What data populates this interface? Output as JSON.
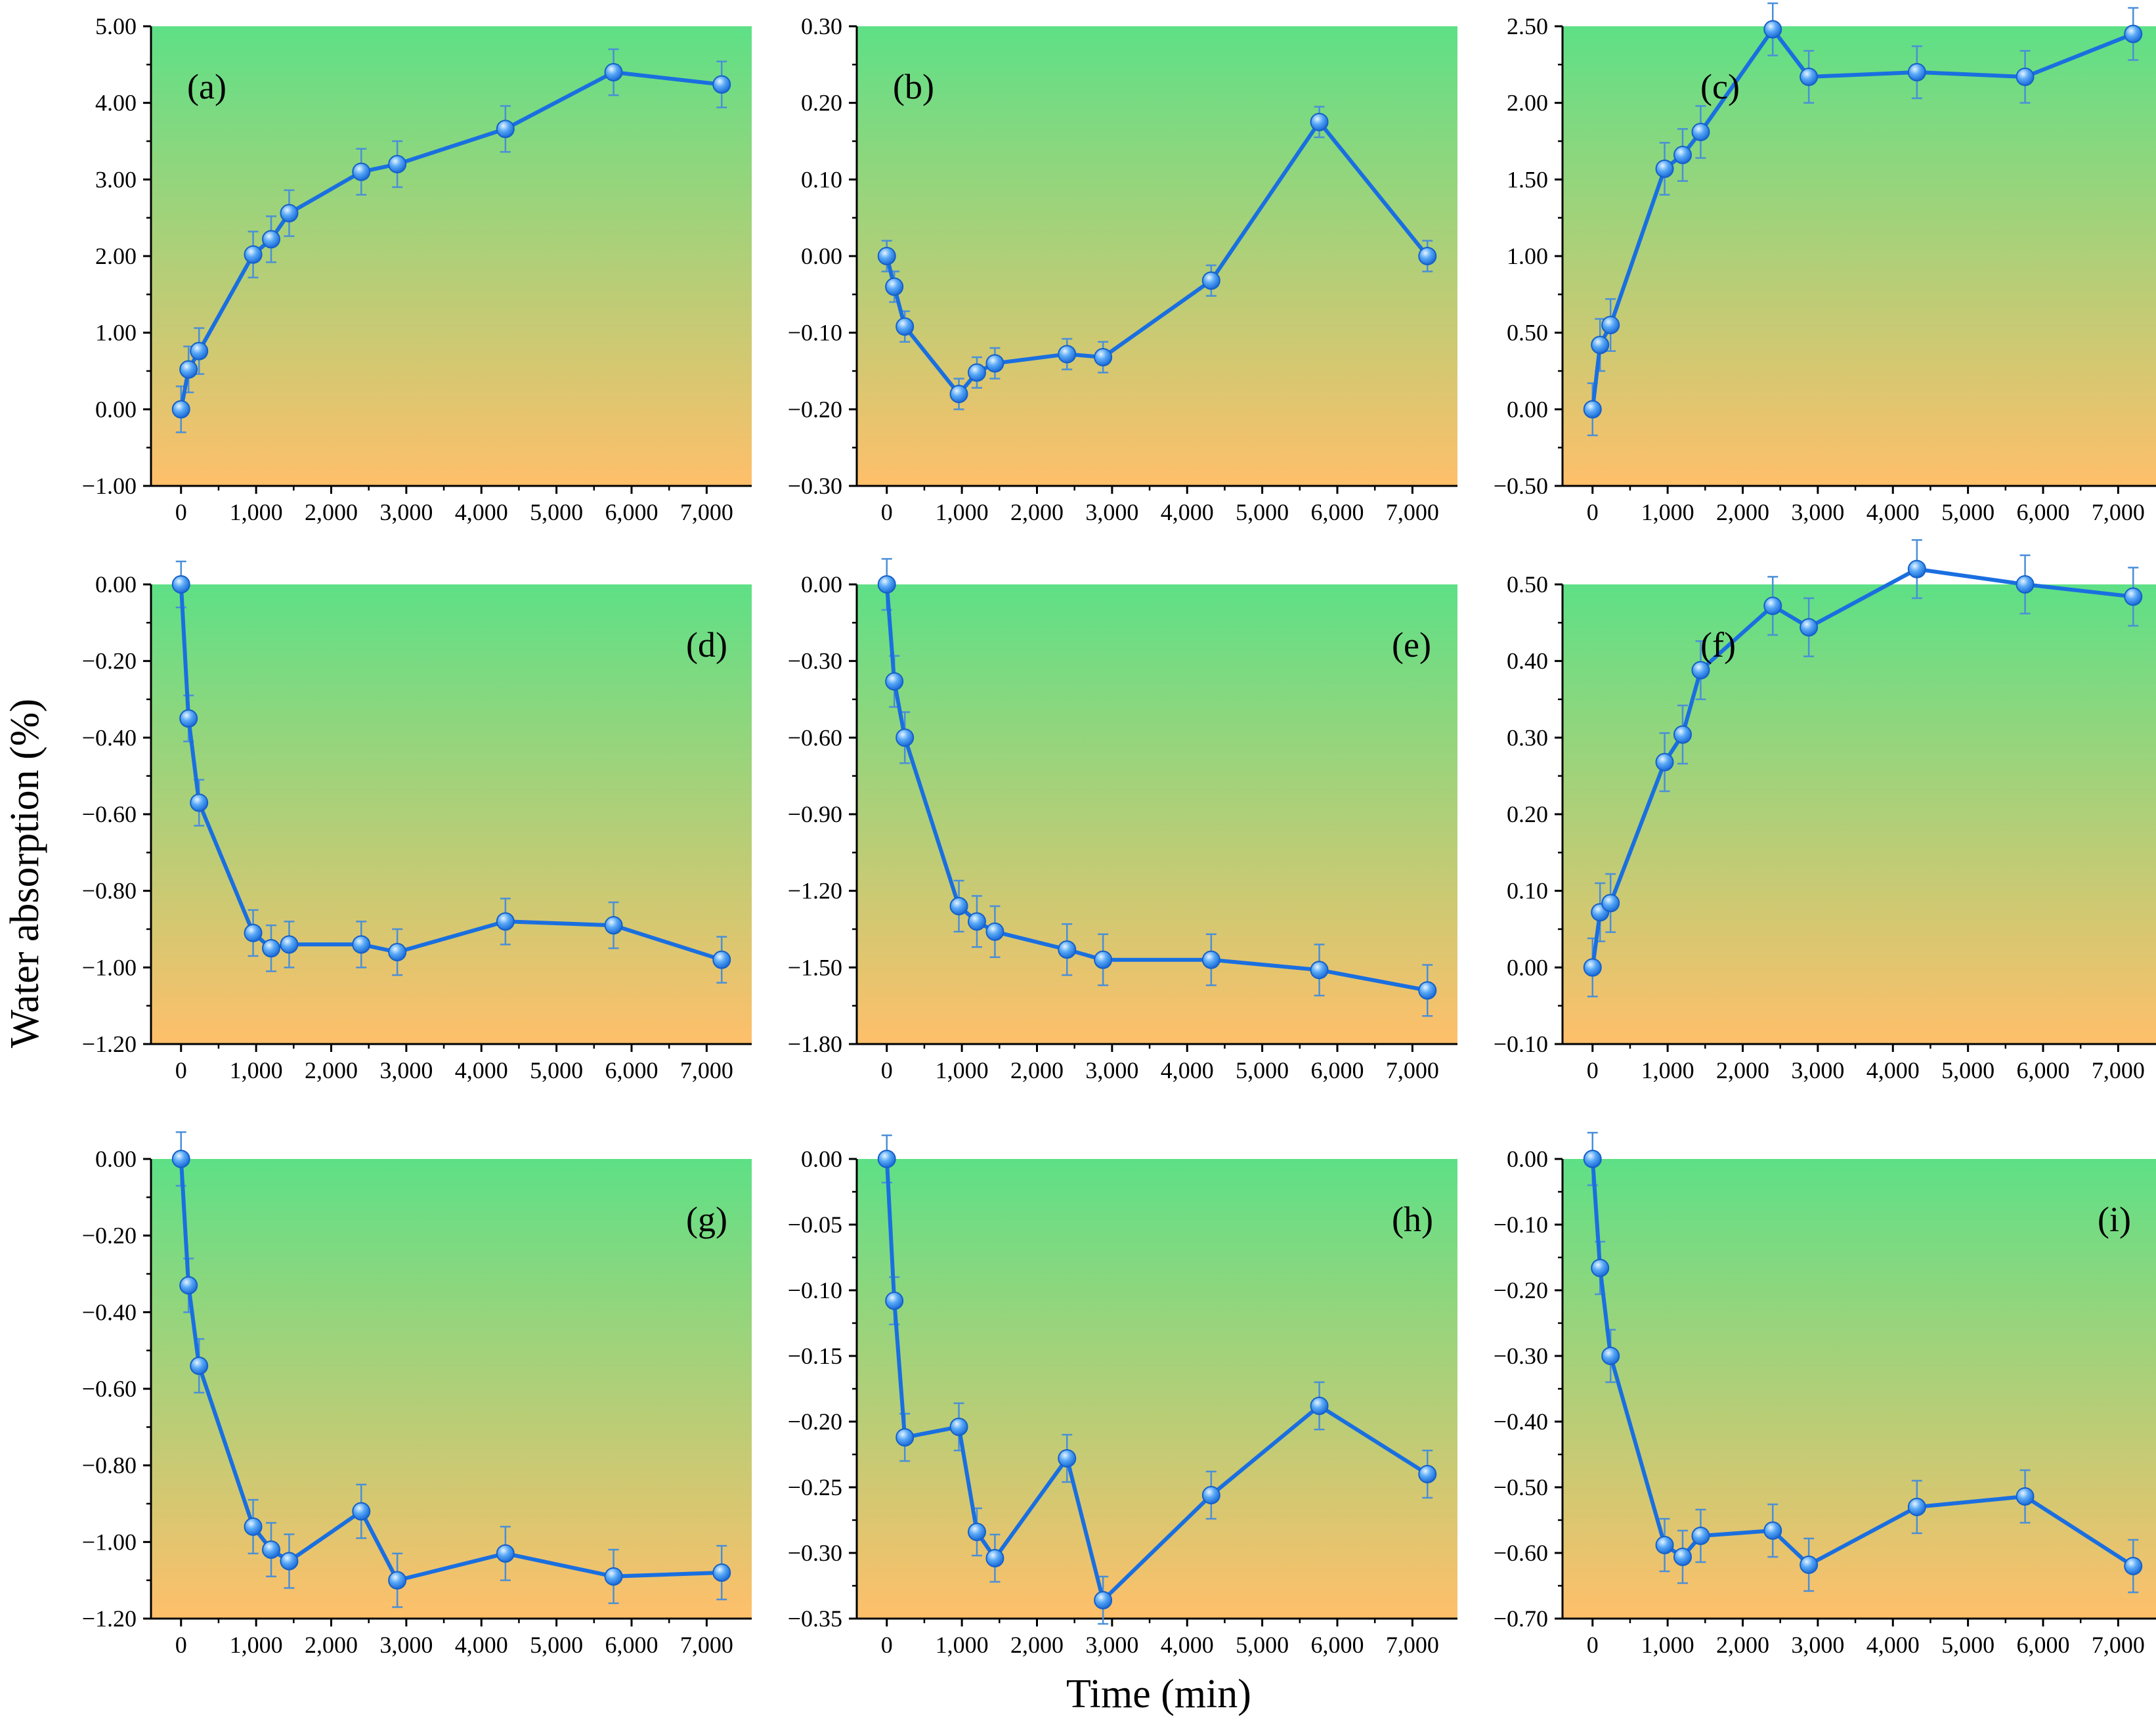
{
  "colors": {
    "line": "#1a6fe0",
    "marker": "#2a86f0",
    "marker_highlight": "#e6f4ff",
    "errorbar": "#4a8fd8",
    "gradient_top": "#5ee086",
    "gradient_bottom": "#ffbf6a",
    "axis": "#000000"
  },
  "figure": {
    "ylabel": "Water absorption (%)",
    "xlabel": "Time (min)"
  },
  "chart_data": [
    {
      "id": "a",
      "label": "(a)",
      "type": "line",
      "label_pos": "top-left",
      "x": [
        0,
        100,
        240,
        960,
        1200,
        1440,
        2400,
        2880,
        4320,
        5760,
        7200
      ],
      "y": [
        0.0,
        0.52,
        0.76,
        2.02,
        2.22,
        2.56,
        3.1,
        3.2,
        3.66,
        4.4,
        4.24
      ],
      "err": [
        0.3,
        0.3,
        0.3,
        0.3,
        0.3,
        0.3,
        0.3,
        0.3,
        0.3,
        0.3,
        0.3
      ],
      "xlim": [
        -400,
        7600
      ],
      "xticks": [
        0,
        1000,
        2000,
        3000,
        4000,
        5000,
        6000,
        7000
      ],
      "xtick_labels": [
        "0",
        "1,000",
        "2,000",
        "3,000",
        "4,000",
        "5,000",
        "6,000",
        "7,000"
      ],
      "ylim": [
        -1.0,
        5.0
      ],
      "yticks": [
        -1.0,
        0.0,
        1.0,
        2.0,
        3.0,
        4.0,
        5.0
      ],
      "ytick_labels": [
        "−1.00",
        "0.00",
        "1.00",
        "2.00",
        "3.00",
        "4.00",
        "5.00"
      ]
    },
    {
      "id": "b",
      "label": "(b)",
      "type": "line",
      "label_pos": "top-left",
      "x": [
        0,
        100,
        240,
        960,
        1200,
        1440,
        2400,
        2880,
        4320,
        5760,
        7200
      ],
      "y": [
        0.0,
        -0.04,
        -0.092,
        -0.18,
        -0.152,
        -0.14,
        -0.128,
        -0.132,
        -0.032,
        0.175,
        0.0
      ],
      "err": [
        0.02,
        0.02,
        0.02,
        0.02,
        0.02,
        0.02,
        0.02,
        0.02,
        0.02,
        0.02,
        0.02
      ],
      "xlim": [
        -400,
        7600
      ],
      "xticks": [
        0,
        1000,
        2000,
        3000,
        4000,
        5000,
        6000,
        7000
      ],
      "xtick_labels": [
        "0",
        "1,000",
        "2,000",
        "3,000",
        "4,000",
        "5,000",
        "6,000",
        "7,000"
      ],
      "ylim": [
        -0.3,
        0.3
      ],
      "yticks": [
        -0.3,
        -0.2,
        -0.1,
        0.0,
        0.1,
        0.2,
        0.3
      ],
      "ytick_labels": [
        "−0.30",
        "−0.20",
        "−0.10",
        "0.00",
        "0.10",
        "0.20",
        "0.30"
      ]
    },
    {
      "id": "c",
      "label": "(c)",
      "type": "line",
      "label_pos": "top-center",
      "x": [
        0,
        100,
        240,
        960,
        1200,
        1440,
        2400,
        2880,
        4320,
        5760,
        7200
      ],
      "y": [
        0.0,
        0.42,
        0.55,
        1.57,
        1.66,
        1.81,
        2.48,
        2.17,
        2.2,
        2.17,
        2.45
      ],
      "err": [
        0.17,
        0.17,
        0.17,
        0.17,
        0.17,
        0.17,
        0.17,
        0.17,
        0.17,
        0.17,
        0.17
      ],
      "xlim": [
        -400,
        7600
      ],
      "xticks": [
        0,
        1000,
        2000,
        3000,
        4000,
        5000,
        6000,
        7000
      ],
      "xtick_labels": [
        "0",
        "1,000",
        "2,000",
        "3,000",
        "4,000",
        "5,000",
        "6,000",
        "7,000"
      ],
      "ylim": [
        -0.5,
        2.5
      ],
      "yticks": [
        -0.5,
        0.0,
        0.5,
        1.0,
        1.5,
        2.0,
        2.5
      ],
      "ytick_labels": [
        "−0.50",
        "0.00",
        "0.50",
        "1.00",
        "1.50",
        "2.00",
        "2.50"
      ]
    },
    {
      "id": "d",
      "label": "(d)",
      "type": "line",
      "label_pos": "top-right",
      "x": [
        0,
        100,
        240,
        960,
        1200,
        1440,
        2400,
        2880,
        4320,
        5760,
        7200
      ],
      "y": [
        0.0,
        -0.35,
        -0.57,
        -0.91,
        -0.95,
        -0.94,
        -0.94,
        -0.96,
        -0.88,
        -0.89,
        -0.98
      ],
      "err": [
        0.06,
        0.06,
        0.06,
        0.06,
        0.06,
        0.06,
        0.06,
        0.06,
        0.06,
        0.06,
        0.06
      ],
      "xlim": [
        -400,
        7600
      ],
      "xticks": [
        0,
        1000,
        2000,
        3000,
        4000,
        5000,
        6000,
        7000
      ],
      "xtick_labels": [
        "0",
        "1,000",
        "2,000",
        "3,000",
        "4,000",
        "5,000",
        "6,000",
        "7,000"
      ],
      "ylim": [
        -1.2,
        0.0
      ],
      "yticks": [
        -1.2,
        -1.0,
        -0.8,
        -0.6,
        -0.4,
        -0.2,
        0.0
      ],
      "ytick_labels": [
        "−1.20",
        "−1.00",
        "−0.80",
        "−0.60",
        "−0.40",
        "−0.20",
        "0.00"
      ]
    },
    {
      "id": "e",
      "label": "(e)",
      "type": "line",
      "label_pos": "top-right",
      "x": [
        0,
        100,
        240,
        960,
        1200,
        1440,
        2400,
        2880,
        4320,
        5760,
        7200
      ],
      "y": [
        0.0,
        -0.38,
        -0.6,
        -1.26,
        -1.32,
        -1.36,
        -1.43,
        -1.47,
        -1.47,
        -1.51,
        -1.59
      ],
      "err": [
        0.1,
        0.1,
        0.1,
        0.1,
        0.1,
        0.1,
        0.1,
        0.1,
        0.1,
        0.1,
        0.1
      ],
      "xlim": [
        -400,
        7600
      ],
      "xticks": [
        0,
        1000,
        2000,
        3000,
        4000,
        5000,
        6000,
        7000
      ],
      "xtick_labels": [
        "0",
        "1,000",
        "2,000",
        "3,000",
        "4,000",
        "5,000",
        "6,000",
        "7,000"
      ],
      "ylim": [
        -1.8,
        0.0
      ],
      "yticks": [
        -1.8,
        -1.5,
        -1.2,
        -0.9,
        -0.6,
        -0.3,
        0.0
      ],
      "ytick_labels": [
        "−1.80",
        "−1.50",
        "−1.20",
        "−0.90",
        "−0.60",
        "−0.30",
        "0.00"
      ]
    },
    {
      "id": "f",
      "label": "(f)",
      "type": "line",
      "label_pos": "top-center",
      "x": [
        0,
        100,
        240,
        960,
        1200,
        1440,
        2400,
        2880,
        4320,
        5760,
        7200
      ],
      "y": [
        0.0,
        0.072,
        0.084,
        0.268,
        0.304,
        0.388,
        0.472,
        0.444,
        0.52,
        0.5,
        0.484
      ],
      "err": [
        0.038,
        0.038,
        0.038,
        0.038,
        0.038,
        0.038,
        0.038,
        0.038,
        0.038,
        0.038,
        0.038
      ],
      "xlim": [
        -400,
        7600
      ],
      "xticks": [
        0,
        1000,
        2000,
        3000,
        4000,
        5000,
        6000,
        7000
      ],
      "xtick_labels": [
        "0",
        "1,000",
        "2,000",
        "3,000",
        "4,000",
        "5,000",
        "6,000",
        "7,000"
      ],
      "ylim": [
        -0.1,
        0.5
      ],
      "yticks": [
        -0.1,
        0.0,
        0.1,
        0.2,
        0.3,
        0.4,
        0.5
      ],
      "ytick_labels": [
        "−0.10",
        "0.00",
        "0.10",
        "0.20",
        "0.30",
        "0.40",
        "0.50"
      ]
    },
    {
      "id": "g",
      "label": "(g)",
      "type": "line",
      "label_pos": "top-right",
      "x": [
        0,
        100,
        240,
        960,
        1200,
        1440,
        2400,
        2880,
        4320,
        5760,
        7200
      ],
      "y": [
        0.0,
        -0.33,
        -0.54,
        -0.96,
        -1.02,
        -1.05,
        -0.92,
        -1.1,
        -1.03,
        -1.09,
        -1.08
      ],
      "err": [
        0.07,
        0.07,
        0.07,
        0.07,
        0.07,
        0.07,
        0.07,
        0.07,
        0.07,
        0.07,
        0.07
      ],
      "xlim": [
        -400,
        7600
      ],
      "xticks": [
        0,
        1000,
        2000,
        3000,
        4000,
        5000,
        6000,
        7000
      ],
      "xtick_labels": [
        "0",
        "1,000",
        "2,000",
        "3,000",
        "4,000",
        "5,000",
        "6,000",
        "7,000"
      ],
      "ylim": [
        -1.2,
        0.0
      ],
      "yticks": [
        -1.2,
        -1.0,
        -0.8,
        -0.6,
        -0.4,
        -0.2,
        0.0
      ],
      "ytick_labels": [
        "−1.20",
        "−1.00",
        "−0.80",
        "−0.60",
        "−0.40",
        "−0.20",
        "0.00"
      ]
    },
    {
      "id": "h",
      "label": "(h)",
      "type": "line",
      "label_pos": "top-right",
      "x": [
        0,
        100,
        240,
        960,
        1200,
        1440,
        2400,
        2880,
        4320,
        5760,
        7200
      ],
      "y": [
        0.0,
        -0.108,
        -0.212,
        -0.204,
        -0.284,
        -0.304,
        -0.228,
        -0.336,
        -0.256,
        -0.188,
        -0.24
      ],
      "err": [
        0.018,
        0.018,
        0.018,
        0.018,
        0.018,
        0.018,
        0.018,
        0.018,
        0.018,
        0.018,
        0.018
      ],
      "xlim": [
        -400,
        7600
      ],
      "xticks": [
        0,
        1000,
        2000,
        3000,
        4000,
        5000,
        6000,
        7000
      ],
      "xtick_labels": [
        "0",
        "1,000",
        "2,000",
        "3,000",
        "4,000",
        "5,000",
        "6,000",
        "7,000"
      ],
      "ylim": [
        -0.35,
        0.0
      ],
      "yticks": [
        -0.35,
        -0.3,
        -0.25,
        -0.2,
        -0.15,
        -0.1,
        -0.05,
        0.0
      ],
      "ytick_labels": [
        "−0.35",
        "−0.30",
        "−0.25",
        "−0.20",
        "−0.15",
        "−0.10",
        "−0.05",
        "0.00"
      ]
    },
    {
      "id": "i",
      "label": "(i)",
      "type": "line",
      "label_pos": "top-right",
      "x": [
        0,
        100,
        240,
        960,
        1200,
        1440,
        2400,
        2880,
        4320,
        5760,
        7200
      ],
      "y": [
        0.0,
        -0.166,
        -0.3,
        -0.588,
        -0.606,
        -0.574,
        -0.566,
        -0.618,
        -0.53,
        -0.514,
        -0.62
      ],
      "err": [
        0.04,
        0.04,
        0.04,
        0.04,
        0.04,
        0.04,
        0.04,
        0.04,
        0.04,
        0.04,
        0.04
      ],
      "xlim": [
        -400,
        7600
      ],
      "xticks": [
        0,
        1000,
        2000,
        3000,
        4000,
        5000,
        6000,
        7000
      ],
      "xtick_labels": [
        "0",
        "1,000",
        "2,000",
        "3,000",
        "4,000",
        "5,000",
        "6,000",
        "7,000"
      ],
      "ylim": [
        -0.7,
        0.0
      ],
      "yticks": [
        -0.7,
        -0.6,
        -0.5,
        -0.4,
        -0.3,
        -0.2,
        -0.1,
        0.0
      ],
      "ytick_labels": [
        "−0.70",
        "−0.60",
        "−0.50",
        "−0.40",
        "−0.30",
        "−0.20",
        "−0.10",
        "0.00"
      ]
    }
  ]
}
